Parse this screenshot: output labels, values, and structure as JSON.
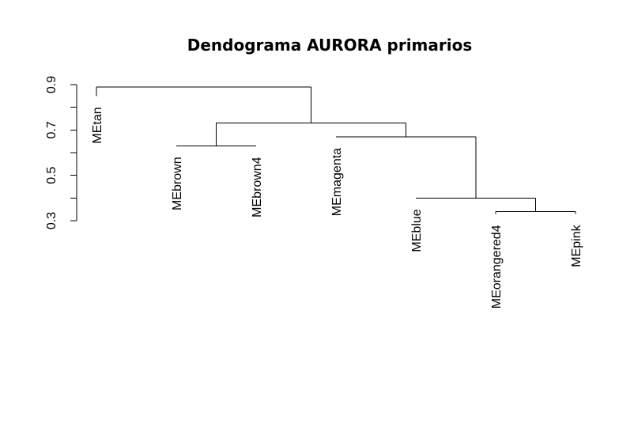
{
  "chart_data": {
    "type": "dendrogram",
    "title": "Dendograma AURORA primarios",
    "xlabel": "",
    "ylabel": "",
    "ylim": [
      0.3,
      0.9
    ],
    "y_ticks_major": [
      0.3,
      0.5,
      0.7,
      0.9
    ],
    "y_ticks_minor": [
      0.4,
      0.6,
      0.8
    ],
    "tick_labels": [
      "0.3",
      "0.5",
      "0.7",
      "0.9"
    ],
    "leaves": [
      "MEtan",
      "MEbrown",
      "MEbrown4",
      "MEmagenta",
      "MEblue",
      "MEorangered4",
      "MEpink"
    ],
    "leaf_heights": [
      0.85,
      0.63,
      0.63,
      0.67,
      0.4,
      0.33,
      0.33
    ],
    "merges": [
      {
        "left": "MEbrown",
        "right": "MEbrown4",
        "height": 0.63
      },
      {
        "left": "MEorangered4",
        "right": "MEpink",
        "height": 0.34
      },
      {
        "left": "MEblue",
        "right": "MEorangered4+MEpink",
        "height": 0.4
      },
      {
        "left": "MEmagenta",
        "right": "MEblue+MEorangered4+MEpink",
        "height": 0.67
      },
      {
        "left": "MEbrown+MEbrown4",
        "right": "MEmagenta+MEblue+MEorangered4+MEpink",
        "height": 0.73
      },
      {
        "left": "MEtan",
        "right": "all others",
        "height": 0.89
      }
    ],
    "grid": false,
    "legend": "none"
  }
}
